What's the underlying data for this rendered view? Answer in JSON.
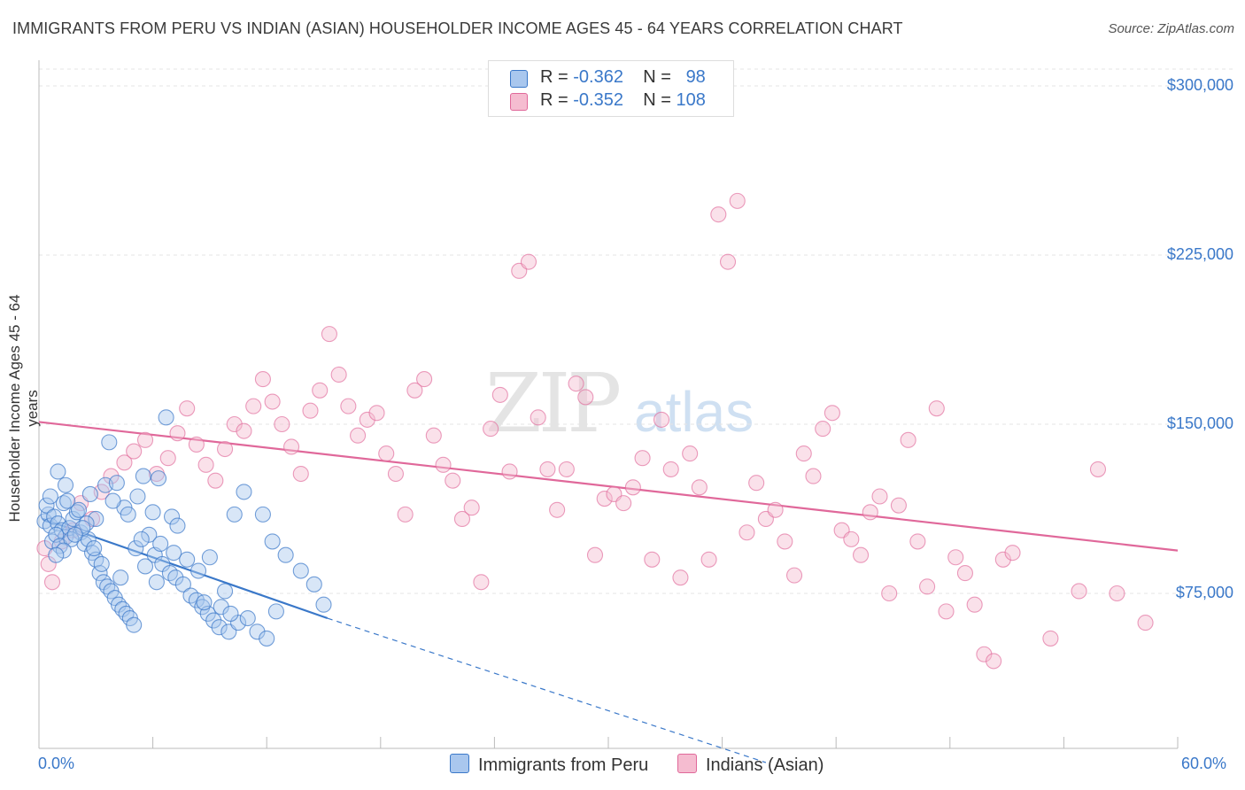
{
  "title": "IMMIGRANTS FROM PERU VS INDIAN (ASIAN) HOUSEHOLDER INCOME AGES 45 - 64 YEARS CORRELATION CHART",
  "source": "Source: ZipAtlas.com",
  "watermark": {
    "zip": "ZIP",
    "atlas": "atlas"
  },
  "legend": {
    "r_label": "R =",
    "n_label": "N =",
    "series1": {
      "r": "-0.362",
      "n": "98"
    },
    "series2": {
      "r": "-0.352",
      "n": "108"
    }
  },
  "colors": {
    "blue": "#3a78c9",
    "blue_fill": "#a9c7ee",
    "pink": "#e0689a",
    "pink_fill": "#f5bcd0"
  },
  "chart_data": {
    "type": "scatter",
    "title": "IMMIGRANTS FROM PERU VS INDIAN (ASIAN) HOUSEHOLDER INCOME AGES 45 - 64 YEARS CORRELATION CHART",
    "xlabel": "",
    "ylabel": "Householder Income Ages 45 - 64 years",
    "xlim": [
      0,
      60
    ],
    "ylim": [
      0,
      300000
    ],
    "x_tick_labels": [
      "0.0%",
      "60.0%"
    ],
    "y_tick_values": [
      75000,
      150000,
      225000,
      300000
    ],
    "y_tick_labels": [
      "$75,000",
      "$150,000",
      "$225,000",
      "$300,000"
    ],
    "series": [
      {
        "name": "Immigrants from Peru",
        "color": "#3a78c9",
        "r": -0.362,
        "n": 98,
        "trend": {
          "x1": 0.2,
          "y1": 108000,
          "x2": 15.2,
          "y2": 64000,
          "dash_to_x": 38.3,
          "dash_to_y": 0
        },
        "points": [
          [
            0.3,
            107000
          ],
          [
            0.5,
            110000
          ],
          [
            0.4,
            114000
          ],
          [
            0.6,
            105000
          ],
          [
            0.8,
            109000
          ],
          [
            1.0,
            106000
          ],
          [
            1.2,
            103000
          ],
          [
            1.4,
            100000
          ],
          [
            0.7,
            98000
          ],
          [
            0.9,
            101000
          ],
          [
            1.1,
            96000
          ],
          [
            1.3,
            115000
          ],
          [
            1.5,
            116000
          ],
          [
            1.6,
            104000
          ],
          [
            1.8,
            108000
          ],
          [
            2.0,
            111000
          ],
          [
            2.2,
            102000
          ],
          [
            2.4,
            97000
          ],
          [
            2.6,
            99000
          ],
          [
            2.8,
            93000
          ],
          [
            3.0,
            90000
          ],
          [
            3.2,
            84000
          ],
          [
            3.4,
            80000
          ],
          [
            3.6,
            78000
          ],
          [
            3.8,
            76000
          ],
          [
            4.0,
            73000
          ],
          [
            4.2,
            70000
          ],
          [
            4.4,
            68000
          ],
          [
            4.6,
            66000
          ],
          [
            4.8,
            64000
          ],
          [
            5.0,
            61000
          ],
          [
            1.0,
            129000
          ],
          [
            2.7,
            119000
          ],
          [
            3.5,
            123000
          ],
          [
            3.7,
            142000
          ],
          [
            4.1,
            124000
          ],
          [
            4.5,
            113000
          ],
          [
            5.5,
            127000
          ],
          [
            5.2,
            118000
          ],
          [
            6.0,
            111000
          ],
          [
            6.3,
            126000
          ],
          [
            6.7,
            153000
          ],
          [
            7.0,
            109000
          ],
          [
            7.3,
            105000
          ],
          [
            5.8,
            101000
          ],
          [
            6.1,
            92000
          ],
          [
            6.5,
            88000
          ],
          [
            6.9,
            84000
          ],
          [
            7.2,
            82000
          ],
          [
            7.6,
            79000
          ],
          [
            8.0,
            74000
          ],
          [
            8.3,
            72000
          ],
          [
            8.6,
            69000
          ],
          [
            8.9,
            66000
          ],
          [
            9.2,
            63000
          ],
          [
            9.5,
            60000
          ],
          [
            10.0,
            58000
          ],
          [
            10.5,
            62000
          ],
          [
            11.0,
            64000
          ],
          [
            11.5,
            58000
          ],
          [
            12.0,
            55000
          ],
          [
            12.5,
            67000
          ],
          [
            3.0,
            108000
          ],
          [
            2.5,
            106000
          ],
          [
            2.1,
            112000
          ],
          [
            1.7,
            99000
          ],
          [
            1.3,
            94000
          ],
          [
            0.9,
            92000
          ],
          [
            5.1,
            95000
          ],
          [
            5.6,
            87000
          ],
          [
            6.2,
            80000
          ],
          [
            7.8,
            90000
          ],
          [
            8.4,
            85000
          ],
          [
            9.0,
            91000
          ],
          [
            9.8,
            76000
          ],
          [
            10.3,
            110000
          ],
          [
            10.8,
            120000
          ],
          [
            11.8,
            110000
          ],
          [
            12.3,
            98000
          ],
          [
            13.0,
            92000
          ],
          [
            13.8,
            85000
          ],
          [
            14.5,
            79000
          ],
          [
            15.0,
            70000
          ],
          [
            4.3,
            82000
          ],
          [
            3.3,
            88000
          ],
          [
            2.9,
            95000
          ],
          [
            2.3,
            104000
          ],
          [
            1.9,
            101000
          ],
          [
            0.6,
            118000
          ],
          [
            1.4,
            123000
          ],
          [
            3.9,
            116000
          ],
          [
            4.7,
            110000
          ],
          [
            5.4,
            99000
          ],
          [
            6.4,
            97000
          ],
          [
            7.1,
            93000
          ],
          [
            8.7,
            71000
          ],
          [
            9.6,
            69000
          ],
          [
            10.1,
            66000
          ]
        ]
      },
      {
        "name": "Indians (Asian)",
        "color": "#e0689a",
        "r": -0.352,
        "n": 108,
        "trend": {
          "x1": 0,
          "y1": 151000,
          "x2": 60,
          "y2": 94000
        },
        "points": [
          [
            0.3,
            95000
          ],
          [
            0.5,
            88000
          ],
          [
            0.7,
            80000
          ],
          [
            1.2,
            98000
          ],
          [
            1.8,
            103000
          ],
          [
            2.2,
            115000
          ],
          [
            2.8,
            108000
          ],
          [
            3.3,
            120000
          ],
          [
            3.8,
            127000
          ],
          [
            4.5,
            133000
          ],
          [
            5.0,
            138000
          ],
          [
            5.6,
            143000
          ],
          [
            6.2,
            128000
          ],
          [
            6.8,
            135000
          ],
          [
            7.3,
            146000
          ],
          [
            7.8,
            157000
          ],
          [
            8.3,
            141000
          ],
          [
            8.8,
            132000
          ],
          [
            9.3,
            125000
          ],
          [
            9.8,
            139000
          ],
          [
            10.3,
            150000
          ],
          [
            10.8,
            147000
          ],
          [
            11.3,
            158000
          ],
          [
            11.8,
            170000
          ],
          [
            12.3,
            160000
          ],
          [
            12.8,
            150000
          ],
          [
            13.3,
            140000
          ],
          [
            13.8,
            128000
          ],
          [
            14.3,
            156000
          ],
          [
            14.8,
            165000
          ],
          [
            15.3,
            190000
          ],
          [
            15.8,
            172000
          ],
          [
            16.3,
            158000
          ],
          [
            16.8,
            145000
          ],
          [
            17.3,
            152000
          ],
          [
            17.8,
            155000
          ],
          [
            18.3,
            137000
          ],
          [
            18.8,
            128000
          ],
          [
            19.3,
            110000
          ],
          [
            19.8,
            165000
          ],
          [
            20.3,
            170000
          ],
          [
            20.8,
            145000
          ],
          [
            21.3,
            132000
          ],
          [
            21.8,
            125000
          ],
          [
            22.3,
            108000
          ],
          [
            22.8,
            113000
          ],
          [
            23.3,
            80000
          ],
          [
            23.8,
            148000
          ],
          [
            24.3,
            163000
          ],
          [
            24.8,
            129000
          ],
          [
            25.3,
            218000
          ],
          [
            25.8,
            222000
          ],
          [
            26.3,
            153000
          ],
          [
            26.8,
            130000
          ],
          [
            27.3,
            112000
          ],
          [
            27.8,
            130000
          ],
          [
            28.3,
            168000
          ],
          [
            28.8,
            162000
          ],
          [
            29.3,
            92000
          ],
          [
            29.8,
            117000
          ],
          [
            30.3,
            119000
          ],
          [
            30.8,
            115000
          ],
          [
            31.3,
            122000
          ],
          [
            31.8,
            135000
          ],
          [
            32.3,
            90000
          ],
          [
            32.8,
            152000
          ],
          [
            33.3,
            130000
          ],
          [
            33.8,
            82000
          ],
          [
            34.3,
            137000
          ],
          [
            34.8,
            122000
          ],
          [
            35.3,
            90000
          ],
          [
            35.8,
            243000
          ],
          [
            36.3,
            222000
          ],
          [
            36.8,
            249000
          ],
          [
            37.3,
            102000
          ],
          [
            37.8,
            124000
          ],
          [
            38.3,
            108000
          ],
          [
            38.8,
            112000
          ],
          [
            39.3,
            98000
          ],
          [
            39.8,
            83000
          ],
          [
            40.3,
            137000
          ],
          [
            40.8,
            127000
          ],
          [
            41.3,
            148000
          ],
          [
            41.8,
            155000
          ],
          [
            42.3,
            103000
          ],
          [
            42.8,
            99000
          ],
          [
            43.3,
            92000
          ],
          [
            43.8,
            111000
          ],
          [
            44.3,
            118000
          ],
          [
            44.8,
            75000
          ],
          [
            45.3,
            114000
          ],
          [
            45.8,
            143000
          ],
          [
            46.3,
            98000
          ],
          [
            46.8,
            78000
          ],
          [
            47.3,
            157000
          ],
          [
            47.8,
            67000
          ],
          [
            48.3,
            91000
          ],
          [
            48.8,
            84000
          ],
          [
            49.3,
            70000
          ],
          [
            49.8,
            48000
          ],
          [
            50.3,
            45000
          ],
          [
            50.8,
            90000
          ],
          [
            51.3,
            93000
          ],
          [
            53.3,
            55000
          ],
          [
            54.8,
            76000
          ],
          [
            55.8,
            130000
          ],
          [
            56.8,
            75000
          ],
          [
            58.3,
            62000
          ]
        ]
      }
    ]
  }
}
